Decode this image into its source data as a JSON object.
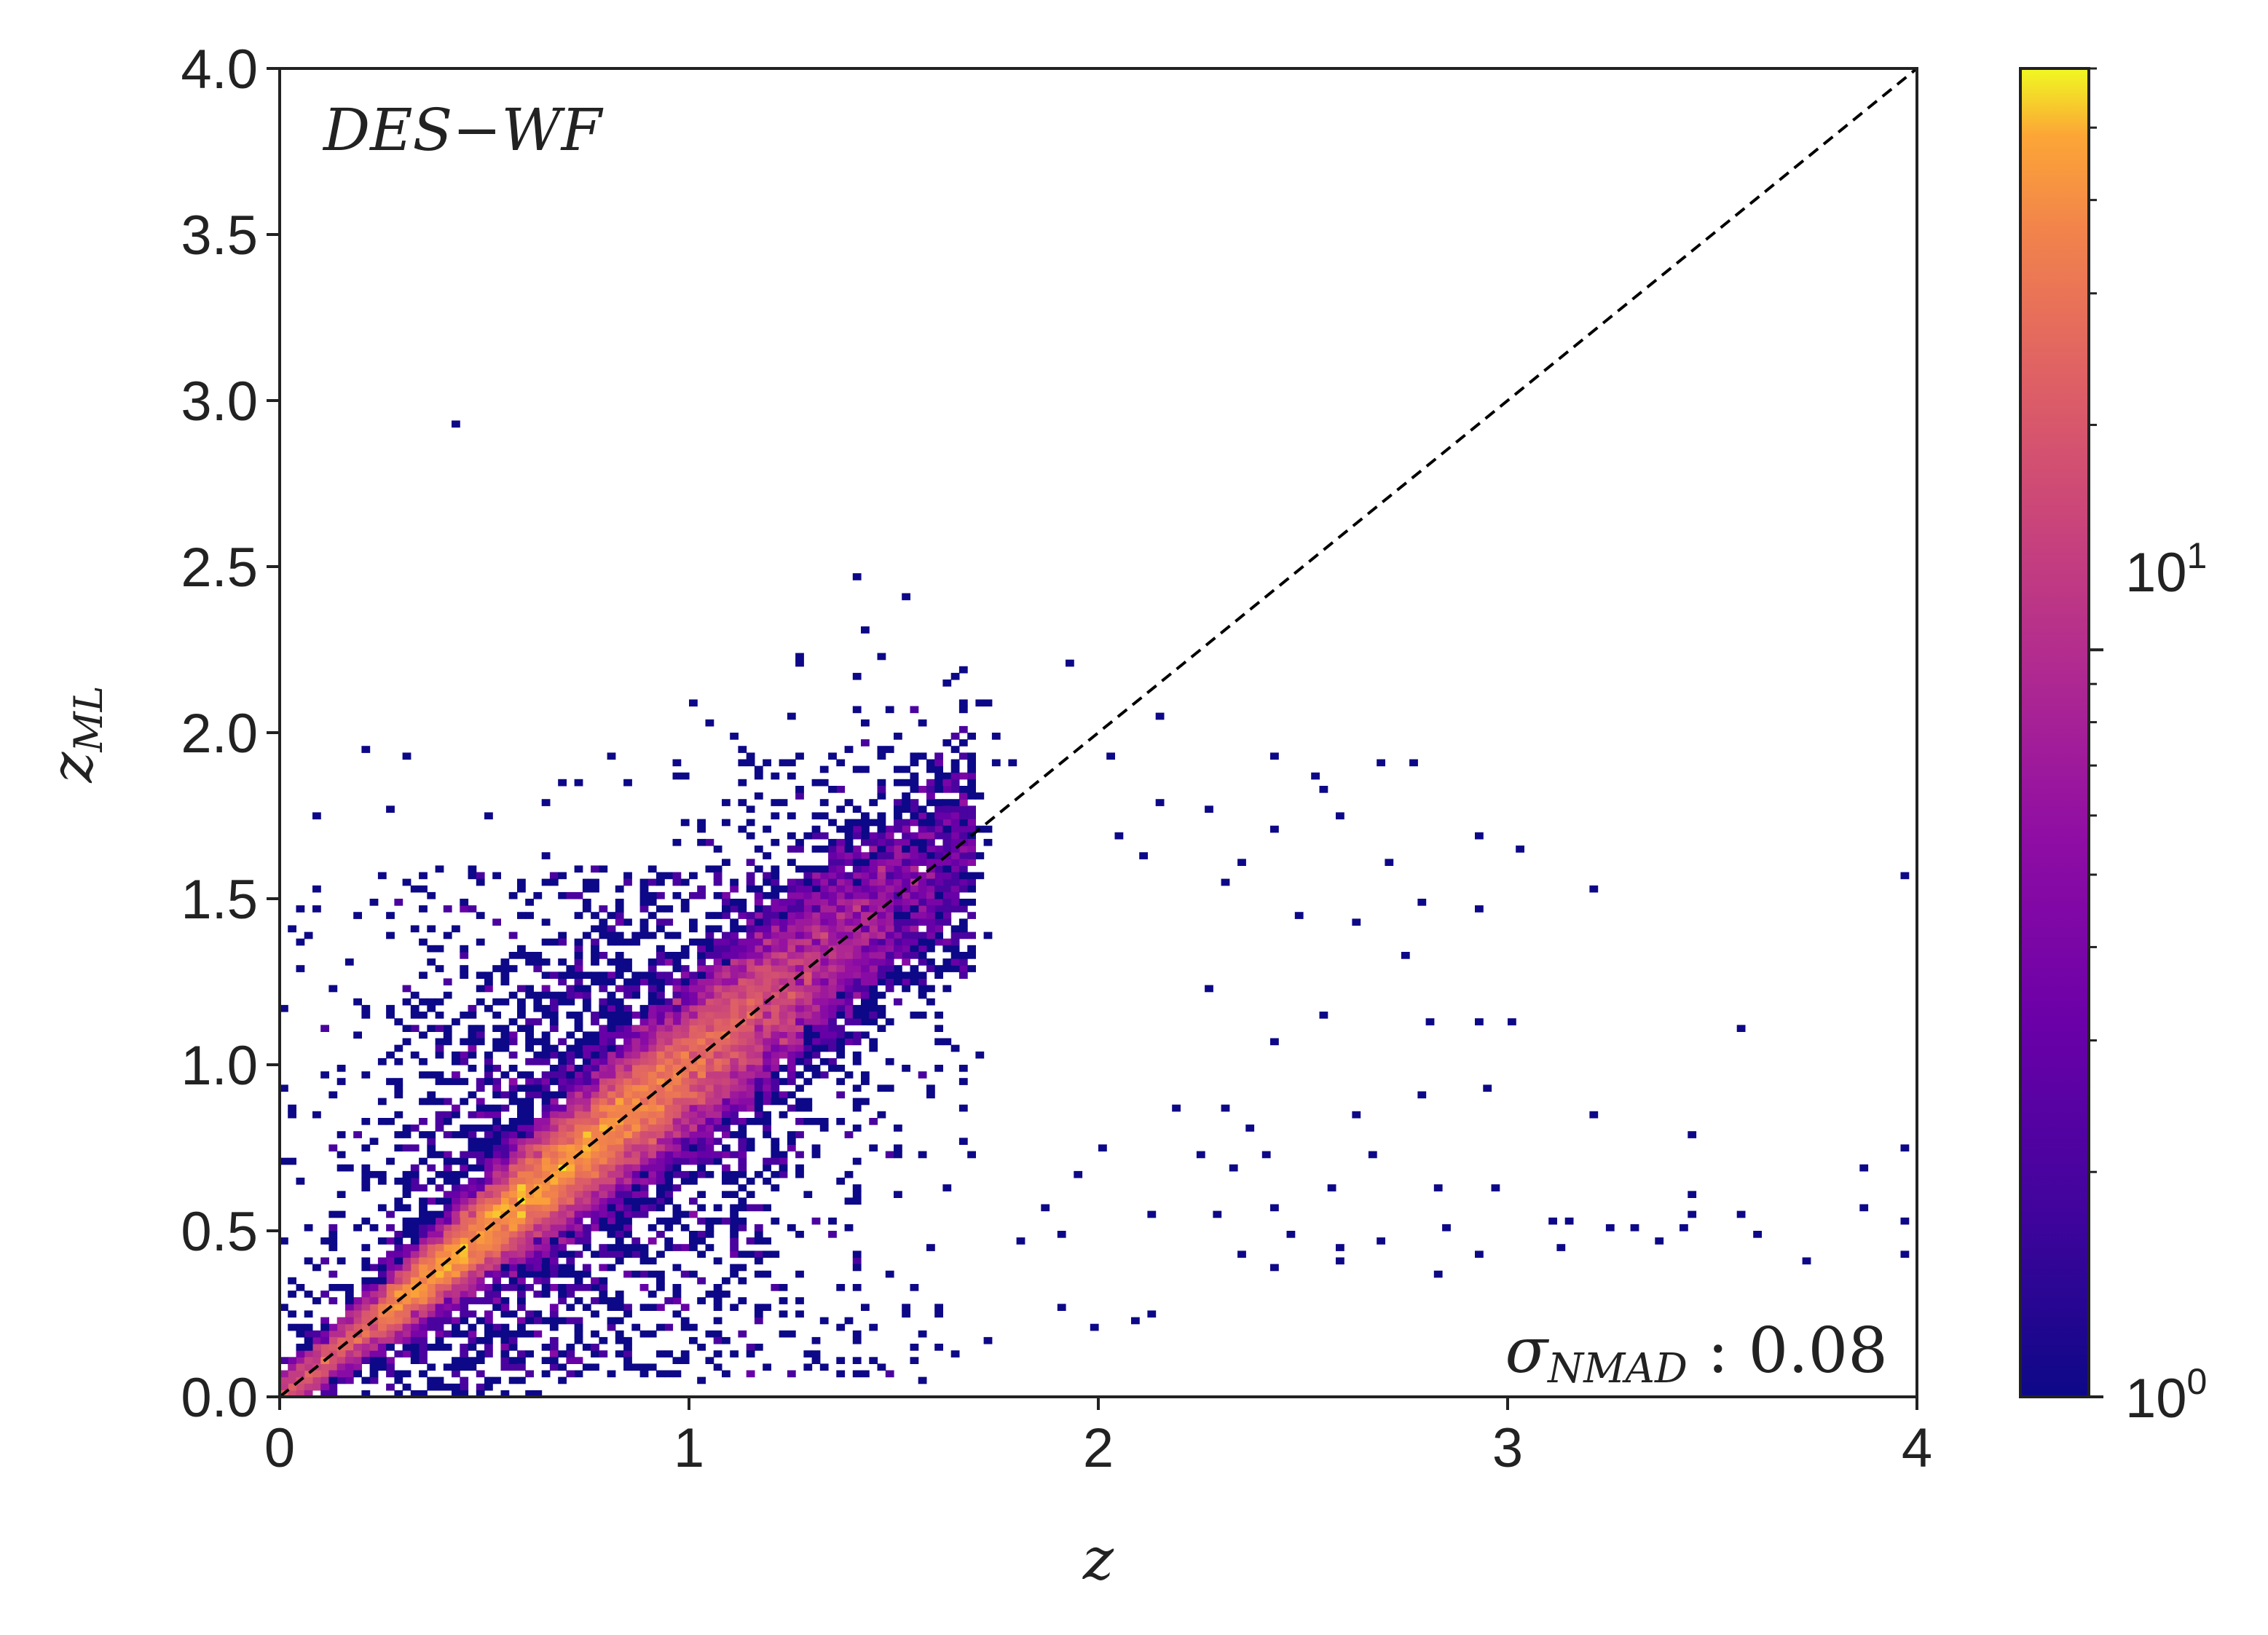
{
  "chart_data": {
    "type": "heatmap",
    "subtype": "2d-histogram",
    "colormap": "plasma",
    "color_scale": "log",
    "xlabel": "z",
    "ylabel_main": "z",
    "ylabel_sub": "ML",
    "xlim": [
      0,
      4
    ],
    "ylim": [
      0,
      4.0
    ],
    "x_ticks": [
      "0",
      "1",
      "2",
      "3",
      "4"
    ],
    "y_ticks": [
      "0.0",
      "0.5",
      "1.0",
      "1.5",
      "2.0",
      "2.5",
      "3.0",
      "3.5",
      "4.0"
    ],
    "colorbar": {
      "range": [
        1,
        60
      ],
      "tick_labels": [
        {
          "base": "10",
          "exp": "0",
          "value": 1
        },
        {
          "base": "10",
          "exp": "1",
          "value": 10
        }
      ]
    },
    "reference_line": {
      "style": "dashed",
      "from": [
        0,
        0
      ],
      "to": [
        4,
        4
      ]
    },
    "annotations": {
      "sample_label": "DES−WF",
      "metric_symbol": "σ",
      "metric_sub": "NMAD",
      "metric_value": " : 0.08"
    },
    "density_core": [
      {
        "x": 0.35,
        "y": 0.38,
        "count": 35
      },
      {
        "x": 0.55,
        "y": 0.5,
        "count": 28
      },
      {
        "x": 0.7,
        "y": 0.68,
        "count": 40
      },
      {
        "x": 0.85,
        "y": 0.88,
        "count": 30
      },
      {
        "x": 1.1,
        "y": 1.05,
        "count": 12
      }
    ],
    "outliers": [
      [
        0.42,
        2.92
      ],
      [
        0.2,
        1.94
      ],
      [
        0.3,
        1.93
      ],
      [
        0.08,
        1.75
      ],
      [
        0.27,
        1.76
      ],
      [
        0.5,
        1.75
      ],
      [
        0.65,
        1.78
      ],
      [
        0.68,
        1.84
      ],
      [
        0.85,
        1.84
      ],
      [
        0.98,
        1.88
      ],
      [
        1.12,
        1.85
      ],
      [
        1.4,
        1.89
      ],
      [
        1.47,
        1.83
      ],
      [
        1.63,
        2.15
      ],
      [
        1.92,
        2.2
      ],
      [
        1.78,
        1.9
      ],
      [
        2.02,
        1.93
      ],
      [
        2.14,
        2.04
      ],
      [
        2.43,
        1.93
      ],
      [
        2.52,
        1.88
      ],
      [
        2.55,
        1.83
      ],
      [
        2.68,
        1.91
      ],
      [
        2.76,
        1.9
      ],
      [
        2.14,
        1.78
      ],
      [
        2.28,
        1.77
      ],
      [
        2.42,
        1.7
      ],
      [
        2.58,
        1.74
      ],
      [
        2.93,
        1.68
      ],
      [
        3.02,
        1.65
      ],
      [
        3.21,
        1.53
      ],
      [
        3.96,
        1.57
      ],
      [
        2.71,
        1.6
      ],
      [
        2.36,
        1.6
      ],
      [
        2.05,
        1.69
      ],
      [
        2.1,
        1.62
      ],
      [
        2.32,
        1.55
      ],
      [
        2.48,
        1.45
      ],
      [
        2.63,
        1.42
      ],
      [
        2.78,
        1.48
      ],
      [
        2.93,
        1.47
      ],
      [
        2.75,
        1.33
      ],
      [
        2.81,
        1.12
      ],
      [
        2.42,
        1.07
      ],
      [
        2.28,
        1.22
      ],
      [
        2.55,
        1.15
      ],
      [
        2.92,
        1.13
      ],
      [
        3.0,
        1.12
      ],
      [
        3.57,
        1.1
      ],
      [
        2.94,
        0.93
      ],
      [
        3.21,
        0.85
      ],
      [
        3.44,
        0.78
      ],
      [
        3.86,
        0.68
      ],
      [
        3.96,
        0.74
      ],
      [
        2.78,
        0.91
      ],
      [
        2.83,
        0.62
      ],
      [
        2.96,
        0.62
      ],
      [
        3.1,
        0.52
      ],
      [
        3.15,
        0.52
      ],
      [
        3.24,
        0.51
      ],
      [
        3.3,
        0.5
      ],
      [
        3.45,
        0.55
      ],
      [
        3.42,
        0.5
      ],
      [
        3.44,
        0.6
      ],
      [
        3.6,
        0.49
      ],
      [
        3.73,
        0.4
      ],
      [
        3.96,
        0.52
      ],
      [
        3.96,
        0.42
      ],
      [
        3.86,
        0.58
      ],
      [
        2.82,
        0.37
      ],
      [
        2.92,
        0.43
      ],
      [
        2.68,
        0.47
      ],
      [
        2.36,
        0.43
      ],
      [
        2.47,
        0.49
      ],
      [
        2.34,
        0.68
      ],
      [
        2.3,
        0.55
      ],
      [
        2.12,
        0.55
      ],
      [
        2.38,
        0.81
      ],
      [
        2.42,
        0.39
      ],
      [
        2.59,
        0.45
      ],
      [
        2.58,
        0.41
      ],
      [
        2.43,
        0.56
      ],
      [
        2.0,
        0.74
      ],
      [
        1.95,
        0.66
      ],
      [
        1.86,
        0.58
      ],
      [
        1.9,
        0.27
      ],
      [
        2.12,
        0.24
      ],
      [
        2.08,
        0.22
      ],
      [
        1.98,
        0.21
      ],
      [
        1.72,
        0.17
      ],
      [
        1.58,
        0.44
      ],
      [
        1.67,
        0.77
      ],
      [
        1.8,
        0.47
      ],
      [
        1.9,
        0.49
      ],
      [
        1.07,
        0.12
      ],
      [
        1.13,
        0.19
      ],
      [
        1.3,
        0.1
      ],
      [
        0.93,
        0.26
      ],
      [
        0.63,
        0.23
      ],
      [
        0.9,
        0.41
      ],
      [
        2.24,
        0.73
      ],
      [
        2.19,
        0.87
      ],
      [
        2.31,
        0.87
      ],
      [
        2.41,
        0.72
      ],
      [
        2.56,
        0.62
      ],
      [
        2.62,
        0.84
      ],
      [
        2.67,
        0.72
      ],
      [
        2.84,
        0.5
      ],
      [
        3.13,
        0.44
      ],
      [
        3.36,
        0.47
      ],
      [
        3.56,
        0.55
      ]
    ]
  }
}
